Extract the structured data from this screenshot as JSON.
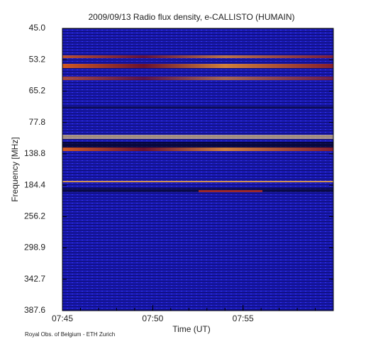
{
  "chart_data": {
    "type": "spectrogram",
    "title": "2009/09/13  Radio flux density, e-CALLISTO (HUMAIN)",
    "y_label": "Frequency [MHz]",
    "x_label": "Time (UT)",
    "footer": "Royal Obs. of Belgium - ETH Zurich",
    "y_categories": [
      "45.0",
      "53.2",
      "65.2",
      "77.8",
      "138.8",
      "184.4",
      "256.2",
      "298.9",
      "342.7",
      "387.6"
    ],
    "xlim": [
      "07:45",
      "08:00"
    ],
    "xticks": [
      "07:45",
      "07:50",
      "07:55"
    ]
  }
}
